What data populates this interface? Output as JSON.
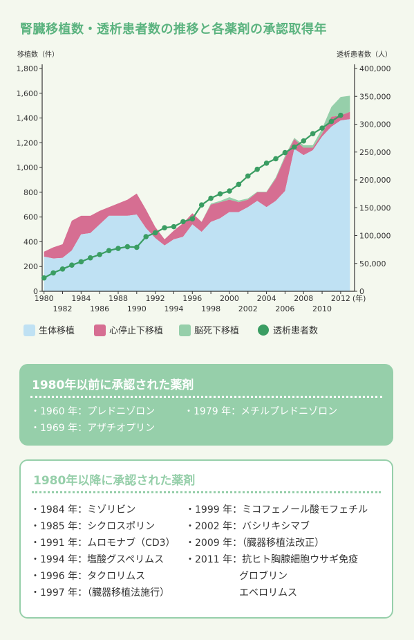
{
  "title": "腎臓移植数・透析患者数の推移と各薬剤の承認取得年",
  "legend": {
    "living": "生体移植",
    "cardiac": "心停止下移植",
    "brain": "脳死下移植",
    "dialysis": "透析患者数"
  },
  "colors": {
    "living": "#bfe1f3",
    "cardiac": "#d66e92",
    "brain": "#96cfaa",
    "dialysis": "#3a9d62",
    "title": "#5bb37f"
  },
  "chart_data": {
    "type": "area",
    "title": "腎臓移植数・透析患者数の推移と各薬剤の承認取得年",
    "ylabel_left": "移植数（件）",
    "ylabel_right": "透析患者数（人）",
    "xlabel_suffix": "(年)",
    "ylim_left": [
      0,
      1800
    ],
    "ylim_right": [
      0,
      400000
    ],
    "yticks_left": [
      "0",
      "200",
      "400",
      "600",
      "800",
      "1,000",
      "1,200",
      "1,400",
      "1,600",
      "1,800"
    ],
    "yticks_right": [
      "0",
      "50,000",
      "100,000",
      "150,000",
      "200,000",
      "250,000",
      "300,000",
      "350,000",
      "400,000"
    ],
    "xticks_upper": [
      "1980",
      "1984",
      "1988",
      "1992",
      "1996",
      "2000",
      "2004",
      "2008",
      "2012"
    ],
    "xticks_lower": [
      "1982",
      "1986",
      "1990",
      "1994",
      "1998",
      "2002",
      "2006",
      "2010"
    ],
    "x": [
      1980,
      1981,
      1982,
      1983,
      1984,
      1985,
      1986,
      1987,
      1988,
      1989,
      1990,
      1991,
      1992,
      1993,
      1994,
      1995,
      1996,
      1997,
      1998,
      1999,
      2000,
      2001,
      2002,
      2003,
      2004,
      2005,
      2006,
      2007,
      2008,
      2009,
      2010,
      2011,
      2012,
      2013
    ],
    "series": [
      {
        "name": "生体移植",
        "axis": "left",
        "stack": true,
        "values": [
          280,
          265,
          270,
          330,
          460,
          470,
          540,
          610,
          610,
          610,
          620,
          510,
          430,
          370,
          420,
          440,
          540,
          480,
          560,
          590,
          640,
          640,
          680,
          730,
          680,
          730,
          810,
          1150,
          1100,
          1140,
          1250,
          1330,
          1380,
          1390
        ]
      },
      {
        "name": "心停止下移植",
        "axis": "left",
        "stack": true,
        "values": [
          40,
          90,
          110,
          240,
          150,
          140,
          110,
          70,
          100,
          130,
          170,
          150,
          90,
          50,
          70,
          110,
          90,
          80,
          140,
          130,
          100,
          80,
          60,
          70,
          120,
          180,
          270,
          80,
          60,
          20,
          25,
          80,
          40,
          60
        ]
      },
      {
        "name": "脳死下移植",
        "axis": "left",
        "stack": true,
        "values": [
          0,
          0,
          0,
          0,
          0,
          0,
          0,
          0,
          0,
          0,
          0,
          0,
          0,
          0,
          0,
          0,
          0,
          2,
          8,
          10,
          20,
          13,
          10,
          5,
          5,
          10,
          15,
          10,
          20,
          20,
          40,
          80,
          150,
          130
        ]
      },
      {
        "name": "透析患者数",
        "axis": "right",
        "type": "line",
        "values": [
          24000,
          33000,
          40000,
          47000,
          53000,
          60000,
          66000,
          73000,
          77000,
          80000,
          79000,
          98000,
          105000,
          114000,
          116000,
          125000,
          130000,
          155000,
          167000,
          175000,
          180000,
          192000,
          207000,
          219000,
          230000,
          238000,
          249000,
          259000,
          270000,
          283000,
          293000,
          305000,
          316000,
          322000
        ]
      }
    ]
  },
  "box1": {
    "title": "1980年以前に承認された薬剤",
    "items": [
      "・1960 年：プレドニゾロン",
      "・1979 年：メチルプレドニゾロン",
      "・1969 年：アザチオプリン"
    ]
  },
  "box2": {
    "title": "1980年以降に承認された薬剤",
    "left_items": [
      "・1984 年：ミゾリビン",
      "・1985 年：シクロスポリン",
      "・1991 年：ムロモナブ（CD3）",
      "・1994 年：塩酸グスペリムス",
      "・1996 年：タクロリムス",
      "・1997 年：（臓器移植法施行）"
    ],
    "right_items": [
      "・1999 年：ミコフェノール酸モフェチル",
      "・2002 年：バシリキシマブ",
      "・2009 年：（臓器移植法改正）",
      "・2011 年：抗ヒト胸腺細胞ウサギ免疫",
      "グロブリン",
      "エベロリムス"
    ]
  }
}
